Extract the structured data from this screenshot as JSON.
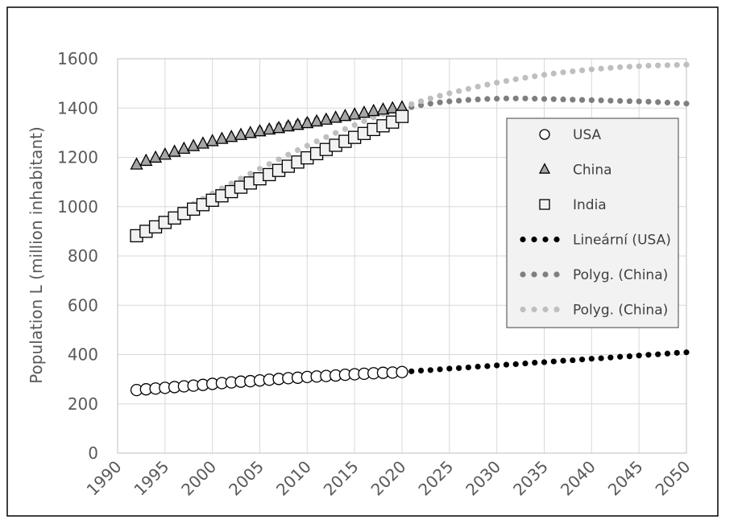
{
  "chart_data": {
    "type": "scatter",
    "title": "",
    "xlabel": "",
    "ylabel": "Population L (million inhabitant)",
    "xlim": [
      1990,
      2050
    ],
    "ylim": [
      0,
      1600
    ],
    "x_ticks": [
      "1990",
      "1995",
      "2000",
      "2005",
      "2010",
      "2015",
      "2020",
      "2025",
      "2030",
      "2035",
      "2040",
      "2045",
      "2050"
    ],
    "y_ticks": [
      "0",
      "200",
      "400",
      "600",
      "800",
      "1000",
      "1200",
      "1400",
      "1600"
    ],
    "grid": true,
    "legend_position": "right",
    "colors": {
      "usa_marker_fill": "#ffffff",
      "china_marker_fill": "#a6a6a6",
      "india_marker_fill": "#f2f2f2",
      "trend_usa": "#000000",
      "trend_china": "#7f7f7f",
      "trend_india": "#bfbfbf",
      "grid": "#d9d9d9",
      "axis_text": "#595959",
      "legend_bg": "#f2f2f2"
    },
    "series": [
      {
        "name": "USA",
        "kind": "marker",
        "marker": "circle",
        "x": [
          1992,
          1993,
          1994,
          1995,
          1996,
          1997,
          1998,
          1999,
          2000,
          2001,
          2002,
          2003,
          2004,
          2005,
          2006,
          2007,
          2008,
          2009,
          2010,
          2011,
          2012,
          2013,
          2014,
          2015,
          2016,
          2017,
          2018,
          2019,
          2020
        ],
        "y": [
          256,
          259,
          262,
          265,
          268,
          271,
          274,
          277,
          281,
          284,
          287,
          290,
          292,
          295,
          298,
          301,
          304,
          306,
          309,
          311,
          313,
          315,
          318,
          320,
          322,
          324,
          326,
          327,
          329
        ]
      },
      {
        "name": "China",
        "kind": "marker",
        "marker": "triangle",
        "x": [
          1992,
          1993,
          1994,
          1995,
          1996,
          1997,
          1998,
          1999,
          2000,
          2001,
          2002,
          2003,
          2004,
          2005,
          2006,
          2007,
          2008,
          2009,
          2010,
          2011,
          2012,
          2013,
          2014,
          2015,
          2016,
          2017,
          2018,
          2019,
          2020
        ],
        "y": [
          1170,
          1185,
          1198,
          1210,
          1222,
          1234,
          1245,
          1255,
          1265,
          1274,
          1282,
          1290,
          1298,
          1305,
          1312,
          1318,
          1325,
          1331,
          1338,
          1345,
          1352,
          1360,
          1367,
          1373,
          1380,
          1387,
          1393,
          1398,
          1402
        ]
      },
      {
        "name": "India",
        "kind": "marker",
        "marker": "square",
        "x": [
          1992,
          1993,
          1994,
          1995,
          1996,
          1997,
          1998,
          1999,
          2000,
          2001,
          2002,
          2003,
          2004,
          2005,
          2006,
          2007,
          2008,
          2009,
          2010,
          2011,
          2012,
          2013,
          2014,
          2015,
          2016,
          2017,
          2018,
          2019,
          2020
        ],
        "y": [
          882,
          900,
          918,
          936,
          954,
          972,
          990,
          1008,
          1026,
          1044,
          1061,
          1079,
          1096,
          1113,
          1130,
          1147,
          1164,
          1181,
          1198,
          1215,
          1232,
          1249,
          1265,
          1281,
          1297,
          1313,
          1328,
          1343,
          1366
        ]
      },
      {
        "name": "Lineární (USA)",
        "kind": "trend",
        "x": [
          1992,
          1993,
          1994,
          1995,
          1996,
          1997,
          1998,
          1999,
          2000,
          2001,
          2002,
          2003,
          2004,
          2005,
          2006,
          2007,
          2008,
          2009,
          2010,
          2011,
          2012,
          2013,
          2014,
          2015,
          2016,
          2017,
          2018,
          2019,
          2020,
          2021,
          2022,
          2023,
          2024,
          2025,
          2026,
          2027,
          2028,
          2029,
          2030,
          2031,
          2032,
          2033,
          2034,
          2035,
          2036,
          2037,
          2038,
          2039,
          2040,
          2041,
          2042,
          2043,
          2044,
          2045,
          2046,
          2047,
          2048,
          2049,
          2050
        ],
        "y": [
          254,
          257,
          260,
          263,
          265,
          268,
          271,
          273,
          276,
          279,
          281,
          284,
          287,
          289,
          292,
          295,
          297,
          300,
          303,
          305,
          308,
          311,
          313,
          316,
          319,
          321,
          324,
          327,
          329,
          332,
          335,
          337,
          340,
          343,
          345,
          348,
          351,
          353,
          356,
          359,
          361,
          364,
          367,
          369,
          372,
          375,
          377,
          380,
          383,
          385,
          388,
          391,
          393,
          396,
          399,
          401,
          404,
          407,
          409
        ]
      },
      {
        "name": "Polyg. (China)",
        "kind": "trend",
        "x": [
          1992,
          1993,
          1994,
          1995,
          1996,
          1997,
          1998,
          1999,
          2000,
          2001,
          2002,
          2003,
          2004,
          2005,
          2006,
          2007,
          2008,
          2009,
          2010,
          2011,
          2012,
          2013,
          2014,
          2015,
          2016,
          2017,
          2018,
          2019,
          2020,
          2021,
          2022,
          2023,
          2024,
          2025,
          2026,
          2027,
          2028,
          2029,
          2030,
          2031,
          2032,
          2033,
          2034,
          2035,
          2036,
          2037,
          2038,
          2039,
          2040,
          2041,
          2042,
          2043,
          2044,
          2045,
          2046,
          2047,
          2048,
          2049,
          2050
        ],
        "y": [
          1172,
          1186,
          1200,
          1213,
          1225,
          1237,
          1248,
          1259,
          1269,
          1279,
          1289,
          1298,
          1306,
          1315,
          1322,
          1330,
          1337,
          1343,
          1350,
          1355,
          1361,
          1366,
          1371,
          1375,
          1380,
          1383,
          1387,
          1390,
          1393,
          1404,
          1412,
          1418,
          1423,
          1427,
          1430,
          1433,
          1435,
          1437,
          1438,
          1439,
          1439,
          1439,
          1438,
          1437,
          1436,
          1435,
          1434,
          1433,
          1432,
          1431,
          1430,
          1429,
          1428,
          1427,
          1426,
          1424,
          1422,
          1420,
          1418
        ]
      },
      {
        "name": "Polyg. (China)",
        "kind": "trend",
        "x": [
          1992,
          1993,
          1994,
          1995,
          1996,
          1997,
          1998,
          1999,
          2000,
          2001,
          2002,
          2003,
          2004,
          2005,
          2006,
          2007,
          2008,
          2009,
          2010,
          2011,
          2012,
          2013,
          2014,
          2015,
          2016,
          2017,
          2018,
          2019,
          2020,
          2021,
          2022,
          2023,
          2024,
          2025,
          2026,
          2027,
          2028,
          2029,
          2030,
          2031,
          2032,
          2033,
          2034,
          2035,
          2036,
          2037,
          2038,
          2039,
          2040,
          2041,
          2042,
          2043,
          2044,
          2045,
          2046,
          2047,
          2048,
          2049,
          2050
        ],
        "y": [
          880,
          902,
          924,
          946,
          968,
          990,
          1011,
          1032,
          1053,
          1074,
          1094,
          1114,
          1134,
          1154,
          1173,
          1192,
          1211,
          1229,
          1247,
          1265,
          1282,
          1299,
          1315,
          1331,
          1347,
          1362,
          1377,
          1391,
          1404,
          1416,
          1428,
          1439,
          1450,
          1460,
          1469,
          1478,
          1487,
          1495,
          1503,
          1510,
          1517,
          1523,
          1529,
          1535,
          1540,
          1545,
          1549,
          1553,
          1557,
          1560,
          1563,
          1566,
          1568,
          1570,
          1572,
          1573,
          1574,
          1575,
          1576
        ]
      }
    ]
  }
}
